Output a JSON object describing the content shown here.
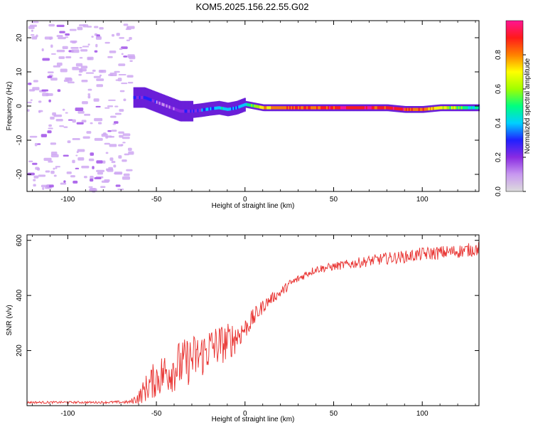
{
  "figure": {
    "title": "KOM5.2025.156.22.55.G02"
  },
  "chart_data": [
    {
      "type": "heatmap",
      "xlabel": "Height of straight line (km)",
      "ylabel": "Frequency (Hz)",
      "xlim": [
        -123,
        132
      ],
      "ylim": [
        -25,
        25
      ],
      "xticks": [
        -100,
        -50,
        0,
        50,
        100
      ],
      "yticks": [
        -20,
        -10,
        0,
        10,
        20
      ],
      "colorbar": {
        "label": "Normalized spectral amplitude",
        "range": [
          0,
          1
        ],
        "ticks": [
          "0.0",
          "0.2",
          "0.4",
          "0.6",
          "0.8"
        ],
        "colors": [
          "#dcdcdc",
          "#c898f0",
          "#8a2be2",
          "#2020ff",
          "#00d0ff",
          "#00ff80",
          "#a0ff00",
          "#ffff00",
          "#ff8000",
          "#ff1a1a",
          "#ff1493"
        ]
      },
      "trace": {
        "x": [
          -63,
          -57,
          -52,
          -47,
          -42,
          -37,
          -30,
          -25,
          -20,
          -15,
          -10,
          -5,
          0,
          5,
          10,
          20,
          30,
          40,
          50,
          60,
          70,
          80,
          90,
          100,
          110,
          120,
          132
        ],
        "freq": [
          2.5,
          2.5,
          1.5,
          0.5,
          -0.5,
          -1.5,
          -1.5,
          -1.2,
          -0.8,
          -0.5,
          -1.0,
          -0.5,
          0.5,
          0.0,
          -0.5,
          -0.5,
          -0.5,
          -0.5,
          -0.5,
          -0.5,
          -0.5,
          -0.5,
          -1.0,
          -1.0,
          -0.5,
          -0.5,
          -0.5
        ],
        "amplitude": [
          0.2,
          0.25,
          0.22,
          0.15,
          0.18,
          0.22,
          0.25,
          0.3,
          0.38,
          0.42,
          0.38,
          0.35,
          0.4,
          0.6,
          0.72,
          0.8,
          0.85,
          0.88,
          0.9,
          0.92,
          0.92,
          0.9,
          0.88,
          0.8,
          0.7,
          0.55,
          0.45
        ]
      },
      "noise": {
        "x_range": [
          -123,
          -65
        ],
        "freq_range": [
          -25,
          25
        ],
        "amplitude": [
          0.02,
          0.08
        ]
      }
    },
    {
      "type": "line",
      "xlabel": "Height of straight line (km)",
      "ylabel": "SNR (v/v)",
      "xlim": [
        -123,
        132
      ],
      "ylim": [
        0,
        620
      ],
      "xticks": [
        -100,
        -50,
        0,
        50,
        100
      ],
      "yticks": [
        200,
        400,
        600
      ],
      "series": [
        {
          "color": "#e8302e",
          "x": [
            -123,
            -100,
            -80,
            -65,
            -60,
            -55,
            -50,
            -45,
            -40,
            -35,
            -30,
            -25,
            -20,
            -15,
            -10,
            -5,
            0,
            5,
            10,
            15,
            20,
            25,
            30,
            35,
            40,
            50,
            60,
            70,
            80,
            90,
            100,
            110,
            120,
            132
          ],
          "mean": [
            12,
            12,
            12,
            13,
            30,
            70,
            100,
            120,
            140,
            150,
            170,
            180,
            210,
            220,
            230,
            250,
            280,
            320,
            360,
            390,
            410,
            440,
            460,
            480,
            495,
            505,
            515,
            525,
            535,
            540,
            550,
            555,
            560,
            570
          ],
          "noise": [
            4,
            4,
            4,
            6,
            25,
            55,
            70,
            80,
            90,
            90,
            90,
            85,
            80,
            75,
            70,
            60,
            40,
            35,
            25,
            20,
            18,
            18,
            15,
            15,
            15,
            15,
            18,
            20,
            22,
            22,
            25,
            25,
            25,
            25
          ]
        }
      ]
    }
  ]
}
